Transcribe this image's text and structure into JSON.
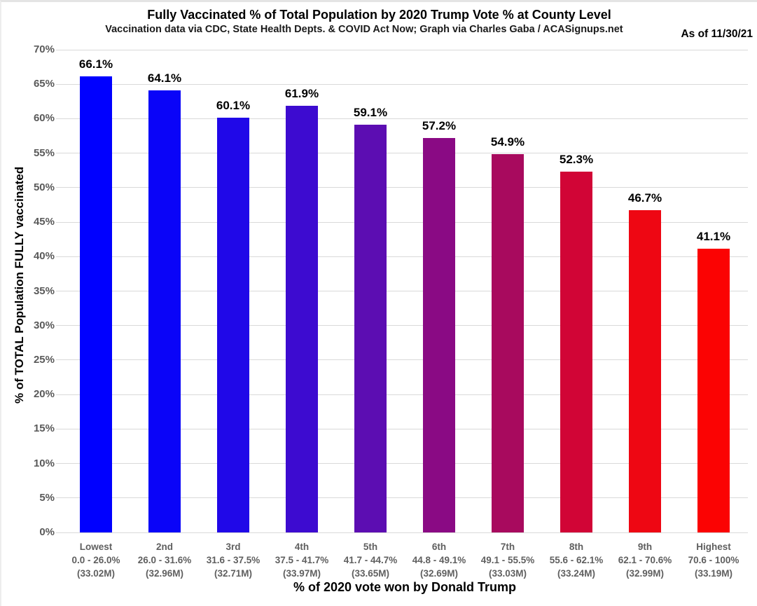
{
  "header": {
    "title": "Fully Vaccinated % of Total Population by 2020 Trump Vote % at County Level",
    "subtitle": "Vaccination data via CDC, State Health Depts. & COVID Act Now; Graph via Charles Gaba / ACASignups.net",
    "as_of": "As of 11/30/21"
  },
  "chart_data": {
    "type": "bar",
    "title": "Fully Vaccinated % of Total Population by 2020 Trump Vote % at County Level",
    "subtitle": "Vaccination data via CDC, State Health Depts. & COVID Act Now; Graph via Charles Gaba / ACASignups.net",
    "annotation": "As of 11/30/21",
    "xlabel": "% of 2020 vote won by Donald Trump",
    "ylabel": "% of TOTAL Population FULLY vaccinated",
    "ylim": [
      0,
      70
    ],
    "ytick_step": 5,
    "ytick_suffix": "%",
    "grid": true,
    "legend": "none",
    "categories": [
      "Lowest",
      "2nd",
      "3rd",
      "4th",
      "5th",
      "6th",
      "7th",
      "8th",
      "9th",
      "Highest"
    ],
    "category_vote_ranges": [
      "0.0 - 26.0%",
      "26.0 - 31.6%",
      "31.6 - 37.5%",
      "37.5 - 41.7%",
      "41.7 - 44.7%",
      "44.8 - 49.1%",
      "49.1 - 55.5%",
      "55.6 - 62.1%",
      "62.1 - 70.6%",
      "70.6 - 100%"
    ],
    "category_populations": [
      "(33.02M)",
      "(32.96M)",
      "(32.71M)",
      "(33.97M)",
      "(33.65M)",
      "(32.69M)",
      "(33.03M)",
      "(33.24M)",
      "(32.99M)",
      "(33.19M)"
    ],
    "values": [
      66.1,
      64.1,
      60.1,
      61.9,
      59.1,
      57.2,
      54.9,
      52.3,
      46.7,
      41.1
    ],
    "bar_colors": [
      "#0000ff",
      "#0a04f8",
      "#2008e8",
      "#3d0bd0",
      "#5c0db2",
      "#8a0a84",
      "#a80a5e",
      "#d10536",
      "#ee0713",
      "#fb0303"
    ],
    "gridline_color": "#d9d9d9",
    "tick_label_color": "#595959",
    "category_label_color": "#5f5f5f"
  }
}
